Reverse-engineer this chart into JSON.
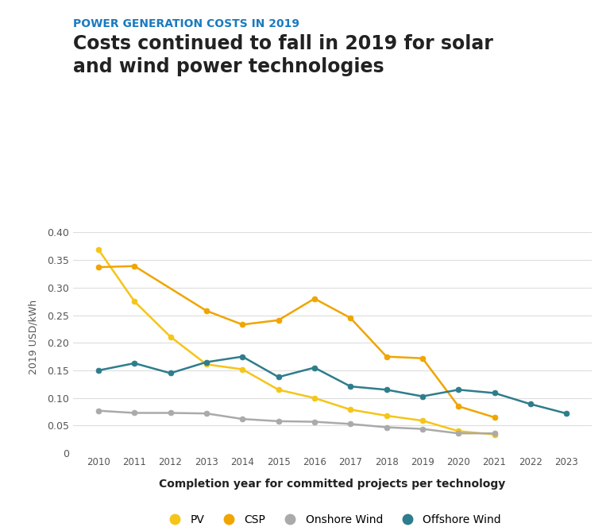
{
  "title_sub": "POWER GENERATION COSTS IN 2019",
  "title_main": "Costs continued to fall in 2019 for solar\nand wind power technologies",
  "xlabel": "Completion year for committed projects per technology",
  "ylabel": "2019 USD/kWh",
  "background_color": "#ffffff",
  "years": [
    2010,
    2011,
    2012,
    2013,
    2014,
    2015,
    2016,
    2017,
    2018,
    2019,
    2020,
    2021,
    2022,
    2023
  ],
  "PV": {
    "color": "#f5c518",
    "values": [
      0.369,
      0.275,
      0.211,
      0.161,
      0.152,
      0.115,
      0.1,
      0.079,
      0.068,
      0.059,
      0.04,
      0.034,
      null,
      null
    ]
  },
  "CSP": {
    "color": "#f0a500",
    "values": [
      0.337,
      0.339,
      null,
      0.258,
      0.233,
      0.241,
      0.28,
      0.245,
      0.175,
      0.172,
      0.085,
      0.065,
      null,
      null
    ]
  },
  "Onshore Wind": {
    "color": "#aaaaaa",
    "values": [
      0.077,
      0.073,
      0.073,
      0.072,
      0.062,
      0.058,
      0.057,
      0.053,
      0.047,
      0.044,
      0.036,
      0.036,
      null,
      null
    ]
  },
  "Offshore Wind": {
    "color": "#2e7d8c",
    "values": [
      0.15,
      0.163,
      0.145,
      0.165,
      0.175,
      0.138,
      0.155,
      0.121,
      0.115,
      0.103,
      0.115,
      0.109,
      0.089,
      0.072
    ]
  },
  "ylim": [
    0,
    0.42
  ],
  "yticks": [
    0,
    0.05,
    0.1,
    0.15,
    0.2,
    0.25,
    0.3,
    0.35,
    0.4
  ],
  "ytick_labels": [
    "0",
    "0.05",
    "0.10",
    "0.15",
    "0.20",
    "0.25",
    "0.30",
    "0.35",
    "0.40"
  ],
  "title_sub_color": "#1a7abf",
  "title_main_color": "#222222",
  "marker_size": 5,
  "line_width": 1.8
}
